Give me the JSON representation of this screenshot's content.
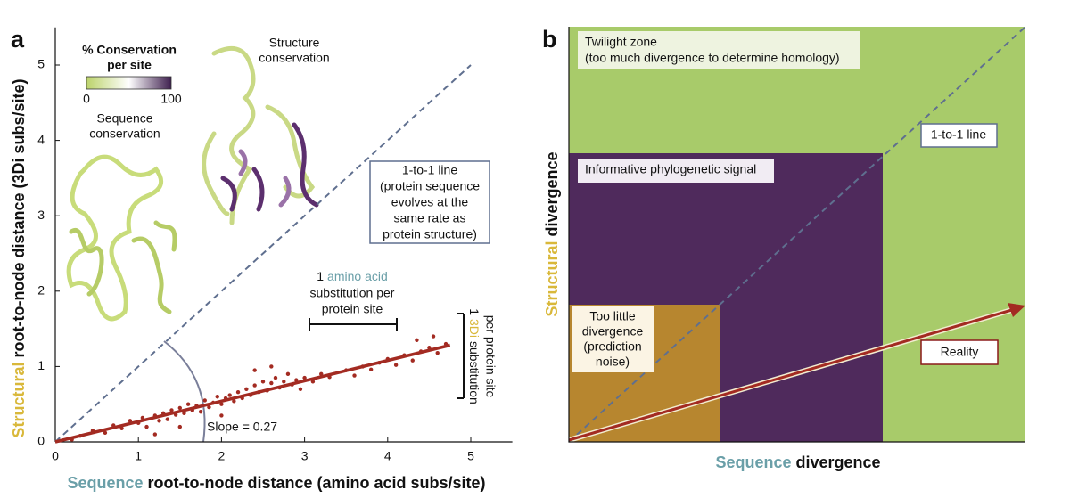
{
  "chart_data": {
    "type": "scatter",
    "panel_label": "a",
    "xlabel": {
      "parts": [
        "Sequence",
        "root-to-node distance (amino acid subs/site)"
      ]
    },
    "ylabel": {
      "parts": [
        "Structural",
        "root-to-node distance (3Di subs/site)"
      ]
    },
    "xlim": [
      0,
      5.5
    ],
    "ylim": [
      0,
      5.5
    ],
    "xticks": [
      0,
      1,
      2,
      3,
      4,
      5
    ],
    "yticks": [
      0,
      1,
      2,
      3,
      4,
      5
    ],
    "color": "#a32b22",
    "x": [
      0.3,
      0.45,
      0.6,
      0.7,
      0.8,
      0.9,
      1.0,
      1.05,
      1.1,
      1.2,
      1.25,
      1.3,
      1.35,
      1.4,
      1.45,
      1.5,
      1.55,
      1.6,
      1.65,
      1.7,
      1.75,
      1.8,
      1.85,
      1.9,
      1.95,
      2.0,
      2.05,
      2.1,
      2.15,
      2.2,
      2.25,
      2.3,
      2.35,
      2.4,
      2.45,
      2.5,
      2.55,
      2.6,
      2.65,
      2.7,
      2.75,
      2.8,
      2.85,
      2.9,
      2.95,
      3.0,
      3.1,
      3.2,
      3.3,
      3.5,
      3.7,
      3.8,
      3.9,
      4.0,
      4.1,
      4.2,
      4.3,
      4.4,
      4.5,
      4.6,
      4.7,
      4.55,
      2.4,
      2.6,
      1.5,
      2.0,
      1.2,
      0.2,
      4.35,
      3.6
    ],
    "values": [
      0.08,
      0.15,
      0.12,
      0.22,
      0.18,
      0.28,
      0.25,
      0.32,
      0.2,
      0.35,
      0.28,
      0.38,
      0.3,
      0.42,
      0.36,
      0.45,
      0.38,
      0.5,
      0.42,
      0.48,
      0.4,
      0.55,
      0.46,
      0.52,
      0.6,
      0.5,
      0.58,
      0.62,
      0.54,
      0.66,
      0.58,
      0.7,
      0.62,
      0.75,
      0.66,
      0.8,
      0.68,
      0.78,
      0.85,
      0.72,
      0.8,
      0.9,
      0.76,
      0.82,
      0.7,
      0.85,
      0.8,
      0.9,
      0.86,
      0.95,
      1.0,
      0.96,
      1.05,
      1.1,
      1.02,
      1.15,
      1.08,
      1.2,
      1.25,
      1.18,
      1.3,
      1.4,
      0.95,
      1.0,
      0.2,
      0.35,
      0.1,
      0.03,
      1.35,
      0.88
    ],
    "fit_line": {
      "slope": 0.27,
      "label": "Slope = 0.27",
      "x": [
        0,
        4.75
      ],
      "color": "#a32b22"
    },
    "reference_line": {
      "x": [
        0,
        5
      ],
      "y": [
        0,
        5
      ],
      "color": "#5f6f8f"
    },
    "annotations": {
      "one_to_one": [
        "1-to-1 line",
        "(protein sequence",
        "evolves at the",
        "same rate as",
        "protein structure)"
      ],
      "aa_scale": {
        "parts": [
          "1",
          "amino acid"
        ],
        "lines": [
          "substitution per",
          "protein site"
        ]
      },
      "di_scale": {
        "parts": [
          "1",
          "3Di",
          "substitution"
        ],
        "line2": "per protein site"
      },
      "structure": [
        "Structure",
        "conservation"
      ],
      "sequence": [
        "Sequence",
        "conservation"
      ]
    },
    "colorbar": {
      "title": [
        "% Conservation",
        "per site"
      ],
      "range": [
        0,
        100
      ],
      "ticks": [
        0,
        100
      ],
      "colors": [
        "#bcd36b",
        "#ffffff",
        "#3e1f4e"
      ]
    }
  },
  "diagram": {
    "panel_label": "b",
    "xlabel": {
      "parts": [
        "Sequence",
        "divergence"
      ]
    },
    "ylabel": {
      "parts": [
        "Structural",
        "divergence"
      ]
    },
    "regions": [
      {
        "label": [
          "Twilight zone",
          "(too much divergence to determine homology)"
        ],
        "color": "#a8cb6a"
      },
      {
        "label": [
          "Informative phylogenetic signal"
        ],
        "color": "#4f2a5c"
      },
      {
        "label": [
          "Too little",
          "divergence",
          "(prediction",
          "noise)"
        ],
        "color": "#b7862f"
      }
    ],
    "one_to_one": "1-to-1 line",
    "reality": "Reality"
  }
}
